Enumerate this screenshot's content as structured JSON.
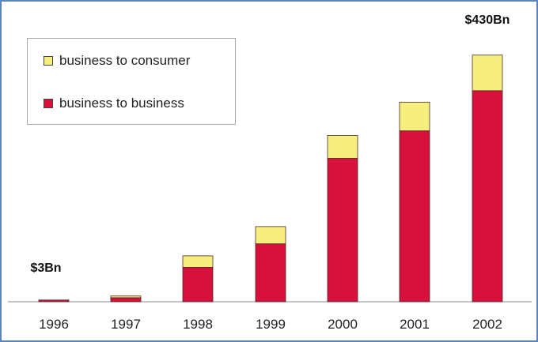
{
  "chart_data": {
    "type": "bar",
    "stacked": true,
    "categories": [
      "1996",
      "1997",
      "1998",
      "1999",
      "2000",
      "2001",
      "2002"
    ],
    "series": [
      {
        "name": "business to business",
        "color": "#d8113c",
        "values": [
          3,
          7,
          60,
          101,
          250,
          298,
          368
        ]
      },
      {
        "name": "business to consumer",
        "color": "#f7ef7d",
        "values": [
          0,
          3,
          20,
          30,
          40,
          50,
          62
        ]
      }
    ],
    "ylim": [
      0,
      460
    ],
    "title": "",
    "xlabel": "",
    "ylabel": "",
    "grid": false,
    "legend_position": "top-left",
    "annotations": [
      {
        "category": "1996",
        "text": "$3Bn"
      },
      {
        "category": "2002",
        "text": "$430Bn"
      }
    ]
  }
}
